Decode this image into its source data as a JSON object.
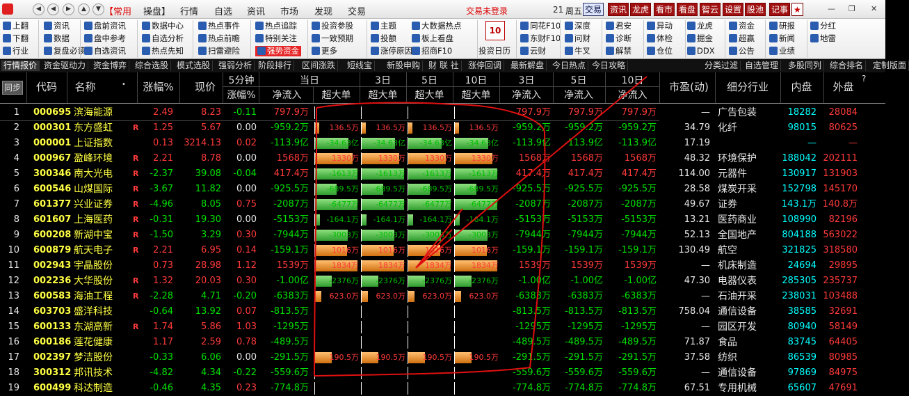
{
  "menubar": {
    "items": [
      "【常用",
      "操盘】",
      "行情",
      "自选",
      "资讯",
      "市场",
      "发现",
      "交易"
    ],
    "status": "交易未登录",
    "time": "21",
    "weekday": "周五",
    "tabs": [
      "交易",
      "资讯",
      "龙虎",
      "看市",
      "看盘",
      "智云",
      "设置",
      "股池",
      "记事"
    ]
  },
  "toolbar": {
    "items": [
      [
        "上翻",
        "资讯",
        "盘前资讯",
        "数据中心",
        "热点事件",
        "热点追踪",
        "投资参股",
        "主题",
        "大数据热点",
        "同花F10",
        "深度",
        "君安",
        "异动",
        "龙虎",
        "资金",
        "研报",
        "分红"
      ],
      [
        "下翻",
        "数据",
        "盘中参考",
        "自选分析",
        "热点前瞻",
        "特别关注",
        "一致预期",
        "投额",
        "板上看盘",
        "东财F10",
        "问财",
        "诊断",
        "体检",
        "掘金",
        "超赢",
        "新闻",
        "地雷"
      ],
      [
        "行业",
        "复盘必读",
        "自选资讯",
        "热点先知",
        "扫雷避险",
        "强势资金",
        "更多",
        "涨停原因",
        "招商F10",
        "云财",
        "牛叉",
        "解禁",
        "仓位",
        "DDX",
        "公告",
        "业绩"
      ]
    ],
    "calendar_label": "投资日历",
    "calendar_day": "10"
  },
  "tabs": [
    "行情报价",
    "资金驱动力",
    "资金博弈",
    "综合选股",
    "模式选股",
    "强弱分析",
    "阶段排行",
    "区间涨跌",
    "短线宝",
    "新股申购",
    "财 联 社",
    "涨停回调",
    "最新解盘",
    "今日热点",
    "今日攻略",
    "分类过滤",
    "自选管理",
    "多股同列",
    "综合排名",
    "定制版面"
  ],
  "header": {
    "sync": "同步",
    "code": "代码",
    "name": "名称",
    "change_pct": "涨幅%",
    "price": "现价",
    "five_min": "5分钟",
    "five_min_sub": "涨幅%",
    "today": "当日",
    "net_inflow": "净流入",
    "super_large": "超大单",
    "d3": "3日",
    "d5": "5日",
    "d10": "10日",
    "pe": "市盈(动)",
    "industry": "细分行业",
    "inner": "内盘",
    "outer": "外盘"
  },
  "rows": [
    {
      "n": "1",
      "code": "000695",
      "name": "滨海能源",
      "r": "",
      "chg": "2.49",
      "price": "8.23",
      "m5": "-0.11",
      "net": "797.9万",
      "sup": "",
      "bars": 0,
      "n3": "797.9万",
      "n5": "797.9万",
      "n10": "797.9万",
      "pe": "—",
      "ind": "广告包装",
      "inner": "18282",
      "outer": "28084"
    },
    {
      "n": "2",
      "code": "000301",
      "name": "东方盛虹",
      "r": "R",
      "chg": "1.25",
      "price": "5.67",
      "m5": "0.00",
      "net": "-959.2万",
      "sup": "136.5万",
      "bars": 0.09,
      "n3": "-959.2万",
      "n5": "-959.2万",
      "n10": "-959.2万",
      "pe": "34.79",
      "ind": "化纤",
      "inner": "98015",
      "outer": "80625"
    },
    {
      "n": "3",
      "code": "000001",
      "name": "上证指数",
      "r": "",
      "chg": "0.13",
      "price": "3214.13",
      "m5": "0.02",
      "net": "-113.9亿",
      "sup": "-34.63亿",
      "bars": -0.78,
      "n3": "-113.9亿",
      "n5": "-113.9亿",
      "n10": "-113.9亿",
      "pe": "17.19",
      "ind": "",
      "inner": "—",
      "outer": "—"
    },
    {
      "n": "4",
      "code": "000967",
      "name": "盈峰环境",
      "r": "R",
      "chg": "2.21",
      "price": "8.78",
      "m5": "0.00",
      "net": "1568万",
      "sup": "1330万",
      "bars": 0.87,
      "n3": "1568万",
      "n5": "1568万",
      "n10": "1568万",
      "pe": "48.32",
      "ind": "环境保护",
      "inner": "188042",
      "outer": "202111"
    },
    {
      "n": "5",
      "code": "300346",
      "name": "南大光电",
      "r": "R",
      "chg": "-2.37",
      "price": "39.08",
      "m5": "-0.04",
      "net": "417.4万",
      "sup": "-1613万",
      "bars": -0.98,
      "n3": "417.4万",
      "n5": "417.4万",
      "n10": "417.4万",
      "pe": "114.00",
      "ind": "元器件",
      "inner": "130917",
      "outer": "131903"
    },
    {
      "n": "6",
      "code": "600546",
      "name": "山煤国际",
      "r": "R",
      "chg": "-3.67",
      "price": "11.82",
      "m5": "0.00",
      "net": "-925.5万",
      "sup": "-689.5万",
      "bars": -0.5,
      "n3": "-925.5万",
      "n5": "-925.5万",
      "n10": "-925.5万",
      "pe": "28.58",
      "ind": "煤炭开采",
      "inner": "152798",
      "outer": "145170"
    },
    {
      "n": "7",
      "code": "601377",
      "name": "兴业证券",
      "r": "R",
      "chg": "-4.96",
      "price": "8.05",
      "m5": "0.75",
      "net": "-2087万",
      "sup": "-6477万",
      "bars": -0.98,
      "n3": "-2087万",
      "n5": "-2087万",
      "n10": "-2087万",
      "pe": "49.67",
      "ind": "证券",
      "inner": "143.1万",
      "outer": "140.8万"
    },
    {
      "n": "8",
      "code": "601607",
      "name": "上海医药",
      "r": "R",
      "chg": "-0.31",
      "price": "19.30",
      "m5": "0.00",
      "net": "-5153万",
      "sup": "-164.1万",
      "bars": -0.12,
      "n3": "-5153万",
      "n5": "-5153万",
      "n10": "-5153万",
      "pe": "13.21",
      "ind": "医药商业",
      "inner": "108990",
      "outer": "82196"
    },
    {
      "n": "9",
      "code": "600208",
      "name": "新湖中宝",
      "r": "R",
      "chg": "-1.50",
      "price": "3.29",
      "m5": "0.30",
      "net": "-7944万",
      "sup": "-3003万",
      "bars": -0.75,
      "n3": "-7944万",
      "n5": "-7944万",
      "n10": "-7944万",
      "pe": "52.13",
      "ind": "全国地产",
      "inner": "804188",
      "outer": "563022"
    },
    {
      "n": "10",
      "code": "600879",
      "name": "航天电子",
      "r": "R",
      "chg": "2.21",
      "price": "6.95",
      "m5": "0.14",
      "net": "-159.1万",
      "sup": "1016万",
      "bars": 0.74,
      "n3": "-159.1万",
      "n5": "-159.1万",
      "n10": "-159.1万",
      "pe": "130.49",
      "ind": "航空",
      "inner": "321825",
      "outer": "318580"
    },
    {
      "n": "11",
      "code": "002943",
      "name": "宇晶股份",
      "r": "",
      "chg": "0.73",
      "price": "28.98",
      "m5": "1.12",
      "net": "1539万",
      "sup": "1834万",
      "bars": 0.98,
      "n3": "1539万",
      "n5": "1539万",
      "n10": "1539万",
      "pe": "—",
      "ind": "机床制造",
      "inner": "24694",
      "outer": "29895"
    },
    {
      "n": "12",
      "code": "002236",
      "name": "大华股份",
      "r": "R",
      "chg": "1.32",
      "price": "20.03",
      "m5": "0.30",
      "net": "-1.00亿",
      "sup": "-2376万",
      "bars": -0.38,
      "n3": "-1.00亿",
      "n5": "-1.00亿",
      "n10": "-1.00亿",
      "pe": "47.30",
      "ind": "电器仪表",
      "inner": "285305",
      "outer": "235737"
    },
    {
      "n": "13",
      "code": "600583",
      "name": "海油工程",
      "r": "R",
      "chg": "-2.28",
      "price": "4.71",
      "m5": "-0.20",
      "net": "-6383万",
      "sup": "623.0万",
      "bars": 0.14,
      "n3": "-6383万",
      "n5": "-6383万",
      "n10": "-6383万",
      "pe": "—",
      "ind": "石油开采",
      "inner": "238031",
      "outer": "103488"
    },
    {
      "n": "14",
      "code": "603703",
      "name": "盛洋科技",
      "r": "",
      "chg": "-0.64",
      "price": "13.92",
      "m5": "0.07",
      "net": "-813.5万",
      "sup": "",
      "bars": 0,
      "n3": "-813.5万",
      "n5": "-813.5万",
      "n10": "-813.5万",
      "pe": "758.04",
      "ind": "通信设备",
      "inner": "38585",
      "outer": "32691"
    },
    {
      "n": "15",
      "code": "600133",
      "name": "东湖高新",
      "r": "R",
      "chg": "1.74",
      "price": "5.86",
      "m5": "1.03",
      "net": "-1295万",
      "sup": "",
      "bars": 0,
      "n3": "-1295万",
      "n5": "-1295万",
      "n10": "-1295万",
      "pe": "—",
      "ind": "园区开发",
      "inner": "80940",
      "outer": "58149"
    },
    {
      "n": "16",
      "code": "600186",
      "name": "莲花健康",
      "r": "",
      "chg": "1.17",
      "price": "2.59",
      "m5": "0.78",
      "net": "-489.5万",
      "sup": "",
      "bars": 0,
      "n3": "-489.5万",
      "n5": "-489.5万",
      "n10": "-489.5万",
      "pe": "71.87",
      "ind": "食品",
      "inner": "83745",
      "outer": "64405"
    },
    {
      "n": "17",
      "code": "002397",
      "name": "梦洁股份",
      "r": "",
      "chg": "-0.33",
      "price": "6.06",
      "m5": "0.00",
      "net": "-291.5万",
      "sup": "190.5万",
      "bars": 0.38,
      "n3": "-291.5万",
      "n5": "-291.5万",
      "n10": "-291.5万",
      "pe": "37.58",
      "ind": "纺织",
      "inner": "86539",
      "outer": "80985"
    },
    {
      "n": "18",
      "code": "300312",
      "name": "邦讯技术",
      "r": "",
      "chg": "-4.82",
      "price": "4.34",
      "m5": "-0.22",
      "net": "-559.6万",
      "sup": "",
      "bars": 0,
      "n3": "-559.6万",
      "n5": "-559.6万",
      "n10": "-559.6万",
      "pe": "—",
      "ind": "通信设备",
      "inner": "97869",
      "outer": "84975"
    },
    {
      "n": "19",
      "code": "600499",
      "name": "科达制造",
      "r": "",
      "chg": "-0.46",
      "price": "4.35",
      "m5": "0.23",
      "net": "-774.8万",
      "sup": "",
      "bars": 0,
      "n3": "-774.8万",
      "n5": "-774.8万",
      "n10": "-774.8万",
      "pe": "67.51",
      "ind": "专用机械",
      "inner": "65607",
      "outer": "47691"
    }
  ],
  "colors": {
    "up": "#ff3a3a",
    "down": "#00e000",
    "pos_bar": "#e08a20",
    "neg_bar": "#3fb03f",
    "annotation": "#e01010"
  }
}
